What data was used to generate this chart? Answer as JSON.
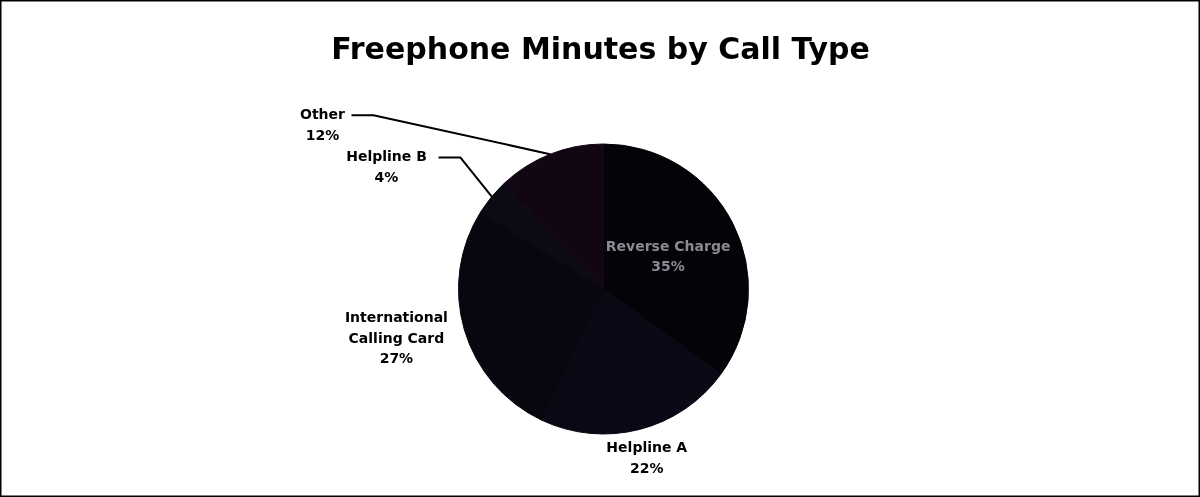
{
  "chart_data": {
    "type": "pie",
    "title": "Freephone Minutes by Call Type",
    "categories": [
      "Reverse Charge",
      "Helpline A",
      "International Calling Card",
      "Helpline B",
      "Other"
    ],
    "values": [
      35,
      22,
      27,
      4,
      12
    ],
    "value_labels": [
      "35%",
      "22%",
      "27%",
      "4%",
      "12%"
    ],
    "colors": [
      "#050308",
      "#0a0814",
      "#08060e",
      "#0c0a12",
      "#120614"
    ]
  }
}
